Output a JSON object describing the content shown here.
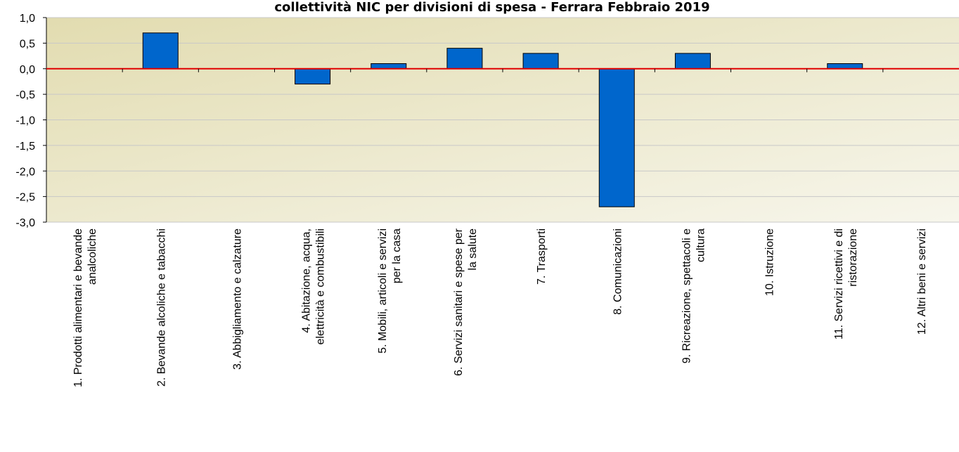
{
  "chart_data": {
    "type": "bar",
    "title": "collettività NIC per divisioni di spesa - Ferrara Febbraio 2019",
    "categories": [
      "1. Prodotti alimentari e bevande analcoliche",
      "2. Bevande alcoliche e tabacchi",
      "3. Abbigliamento e calzature",
      "4. Abitazione, acqua, elettricità e combustibili",
      "5. Mobili, articoli e servizi per la casa",
      "6. Servizi sanitari e spese per la salute",
      "7. Trasporti",
      "8. Comunicazioni",
      "9. Ricreazione, spettacoli e cultura",
      "10. Istruzione",
      "11. Servizi ricettivi e di ristorazione",
      "12. Altri beni e servizi"
    ],
    "values": [
      0,
      0.7,
      0,
      -0.3,
      0.1,
      0.4,
      0.3,
      -2.7,
      0.3,
      0,
      0.1,
      0
    ],
    "color": "#0066cc",
    "ylim": [
      -3,
      1
    ],
    "yticks": [
      {
        "value": -3,
        "label": "-3,0"
      },
      {
        "value": -2.5,
        "label": "-2,5"
      },
      {
        "value": -2,
        "label": "-2,0"
      },
      {
        "value": -1.5,
        "label": "-1,5"
      },
      {
        "value": -1,
        "label": "-1,0"
      },
      {
        "value": -0.5,
        "label": "-0,5"
      },
      {
        "value": 0,
        "label": "0,0"
      },
      {
        "value": 0.5,
        "label": "0,5"
      },
      {
        "value": 1,
        "label": "1,0"
      }
    ],
    "grid": true
  }
}
